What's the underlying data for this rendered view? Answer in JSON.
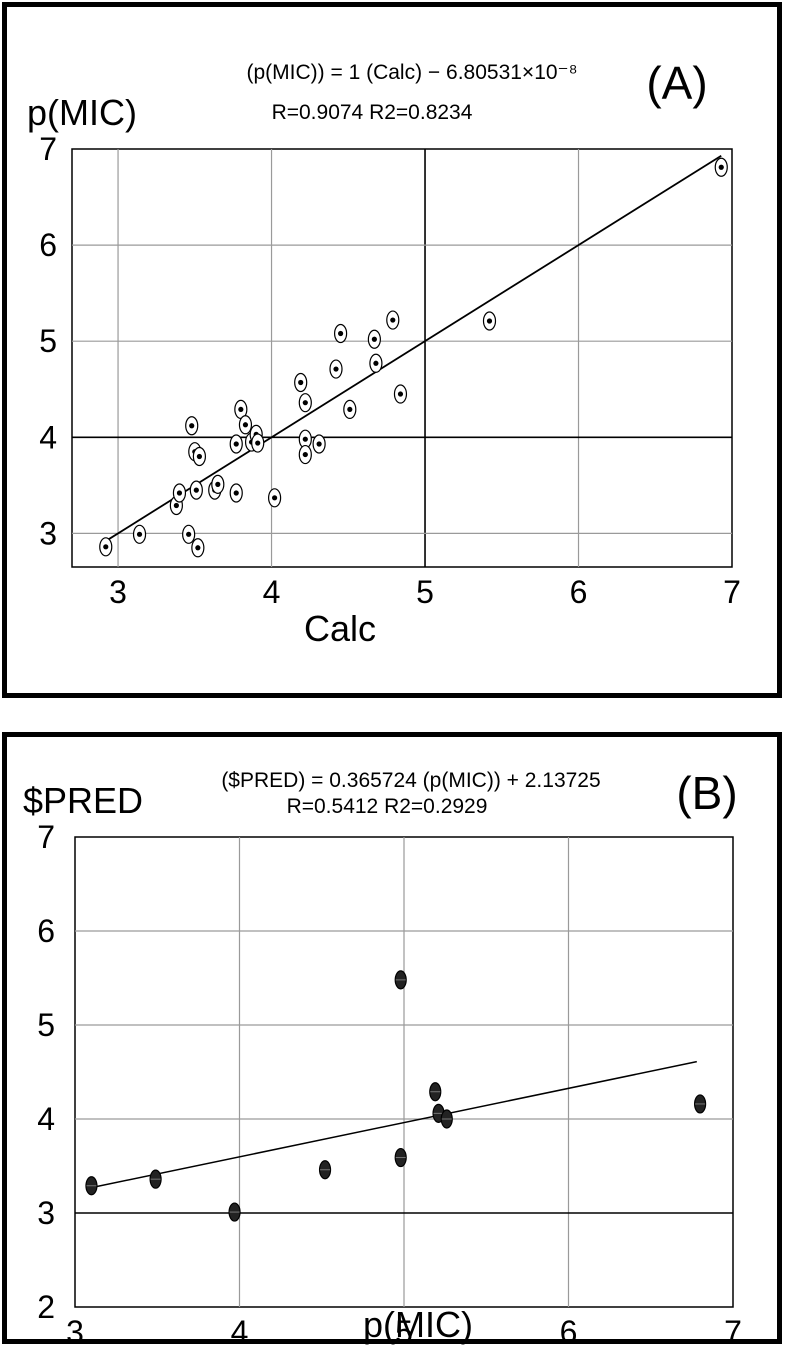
{
  "chart_data": [
    {
      "type": "scatter",
      "panel_label": "(A)",
      "equation": "(p(MIC)) = 1 (Calc) − 6.80531×10⁻⁸",
      "stats": "R=0.9074 R2=0.8234",
      "xlabel": "Calc",
      "ylabel": "p(MIC)",
      "xlim": [
        2.7,
        7.0
      ],
      "ylim": [
        2.65,
        7.0
      ],
      "xticks": [
        "3",
        "4",
        "5",
        "6",
        "7"
      ],
      "yticks": [
        "3",
        "4",
        "5",
        "6",
        "7"
      ],
      "grid": true,
      "regression_line": {
        "x": [
          2.92,
          6.93
        ],
        "y": [
          2.92,
          6.93
        ]
      },
      "points": [
        {
          "x": 2.92,
          "y": 2.86
        },
        {
          "x": 3.14,
          "y": 2.99
        },
        {
          "x": 3.38,
          "y": 3.29
        },
        {
          "x": 3.4,
          "y": 3.42
        },
        {
          "x": 3.46,
          "y": 2.99
        },
        {
          "x": 3.48,
          "y": 4.12
        },
        {
          "x": 3.5,
          "y": 3.85
        },
        {
          "x": 3.51,
          "y": 3.45
        },
        {
          "x": 3.52,
          "y": 2.85
        },
        {
          "x": 3.53,
          "y": 3.8
        },
        {
          "x": 3.63,
          "y": 3.45
        },
        {
          "x": 3.65,
          "y": 3.51
        },
        {
          "x": 3.77,
          "y": 3.93
        },
        {
          "x": 3.77,
          "y": 3.42
        },
        {
          "x": 3.8,
          "y": 4.29
        },
        {
          "x": 3.83,
          "y": 4.13
        },
        {
          "x": 3.87,
          "y": 3.95
        },
        {
          "x": 3.9,
          "y": 4.03
        },
        {
          "x": 3.91,
          "y": 3.94
        },
        {
          "x": 4.02,
          "y": 3.37
        },
        {
          "x": 4.19,
          "y": 4.57
        },
        {
          "x": 4.22,
          "y": 4.36
        },
        {
          "x": 4.22,
          "y": 3.98
        },
        {
          "x": 4.22,
          "y": 3.82
        },
        {
          "x": 4.31,
          "y": 3.93
        },
        {
          "x": 4.42,
          "y": 4.71
        },
        {
          "x": 4.45,
          "y": 5.08
        },
        {
          "x": 4.51,
          "y": 4.29
        },
        {
          "x": 4.67,
          "y": 5.02
        },
        {
          "x": 4.68,
          "y": 4.77
        },
        {
          "x": 4.79,
          "y": 5.22
        },
        {
          "x": 4.84,
          "y": 4.45
        },
        {
          "x": 5.42,
          "y": 5.21
        },
        {
          "x": 6.93,
          "y": 6.81
        }
      ]
    },
    {
      "type": "scatter",
      "panel_label": "(B)",
      "equation": "($PRED) = 0.365724 (p(MIC)) + 2.13725",
      "stats": "R=0.5412    R2=0.2929",
      "xlabel": "p(MIC)",
      "ylabel": "$PRED",
      "xlim": [
        3.0,
        7.0
      ],
      "ylim": [
        2.0,
        7.0
      ],
      "xticks": [
        "3",
        "4",
        "5",
        "6",
        "7"
      ],
      "yticks": [
        "2",
        "3",
        "4",
        "5",
        "6",
        "7"
      ],
      "grid": true,
      "regression_line": {
        "x": [
          3.1,
          6.78
        ],
        "y": [
          3.27,
          4.61
        ]
      },
      "points": [
        {
          "x": 3.1,
          "y": 3.29
        },
        {
          "x": 3.49,
          "y": 3.36
        },
        {
          "x": 3.97,
          "y": 3.01
        },
        {
          "x": 4.52,
          "y": 3.46
        },
        {
          "x": 4.98,
          "y": 5.48
        },
        {
          "x": 4.98,
          "y": 3.59
        },
        {
          "x": 5.19,
          "y": 4.29
        },
        {
          "x": 5.21,
          "y": 4.06
        },
        {
          "x": 5.26,
          "y": 4.0
        },
        {
          "x": 6.8,
          "y": 4.16
        }
      ]
    }
  ]
}
